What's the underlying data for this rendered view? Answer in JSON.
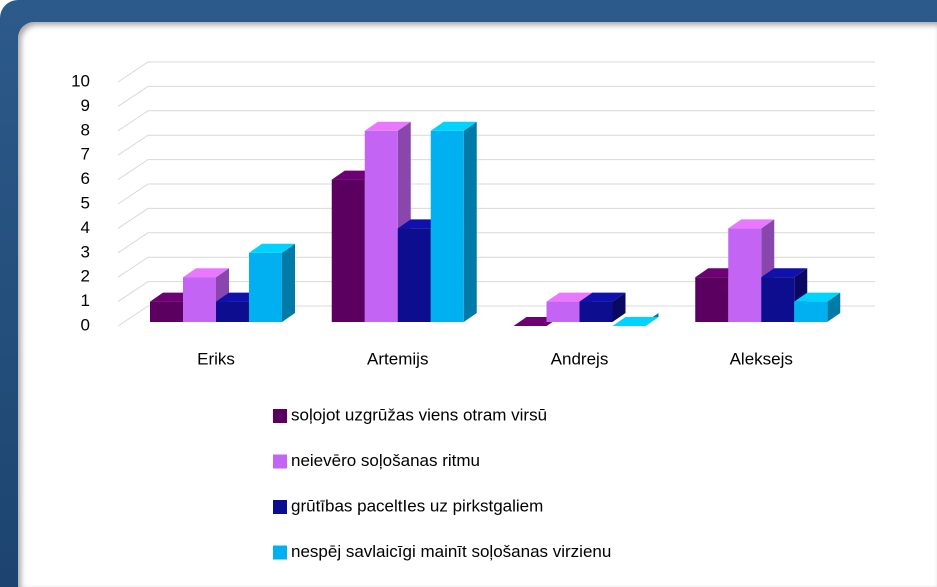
{
  "chart_data": {
    "type": "bar3d",
    "categories": [
      "Eriks",
      "Artemijs",
      "Andrejs",
      "Aleksejs"
    ],
    "series": [
      {
        "name": "soļojot uzgrūžas viens otram virsū",
        "color": "#5b0060",
        "values": [
          1,
          6,
          0,
          2
        ]
      },
      {
        "name": "neievēro soļošanas ritmu",
        "color": "#c364f5",
        "values": [
          2,
          8,
          1,
          4
        ]
      },
      {
        "name": "grūtības paceltIes uz pirkstgaliem",
        "color": "#0d0d8f",
        "values": [
          1,
          4,
          1,
          2
        ]
      },
      {
        "name": "nespēj savlaicīgi mainīt soļošanas virzienu",
        "color": "#00b0f0",
        "values": [
          3,
          8,
          0,
          1
        ]
      }
    ],
    "ylim": [
      0,
      10
    ],
    "yticks": [
      0,
      1,
      2,
      3,
      4,
      5,
      6,
      7,
      8,
      9,
      10
    ],
    "grid": true,
    "legend": "bottom"
  }
}
